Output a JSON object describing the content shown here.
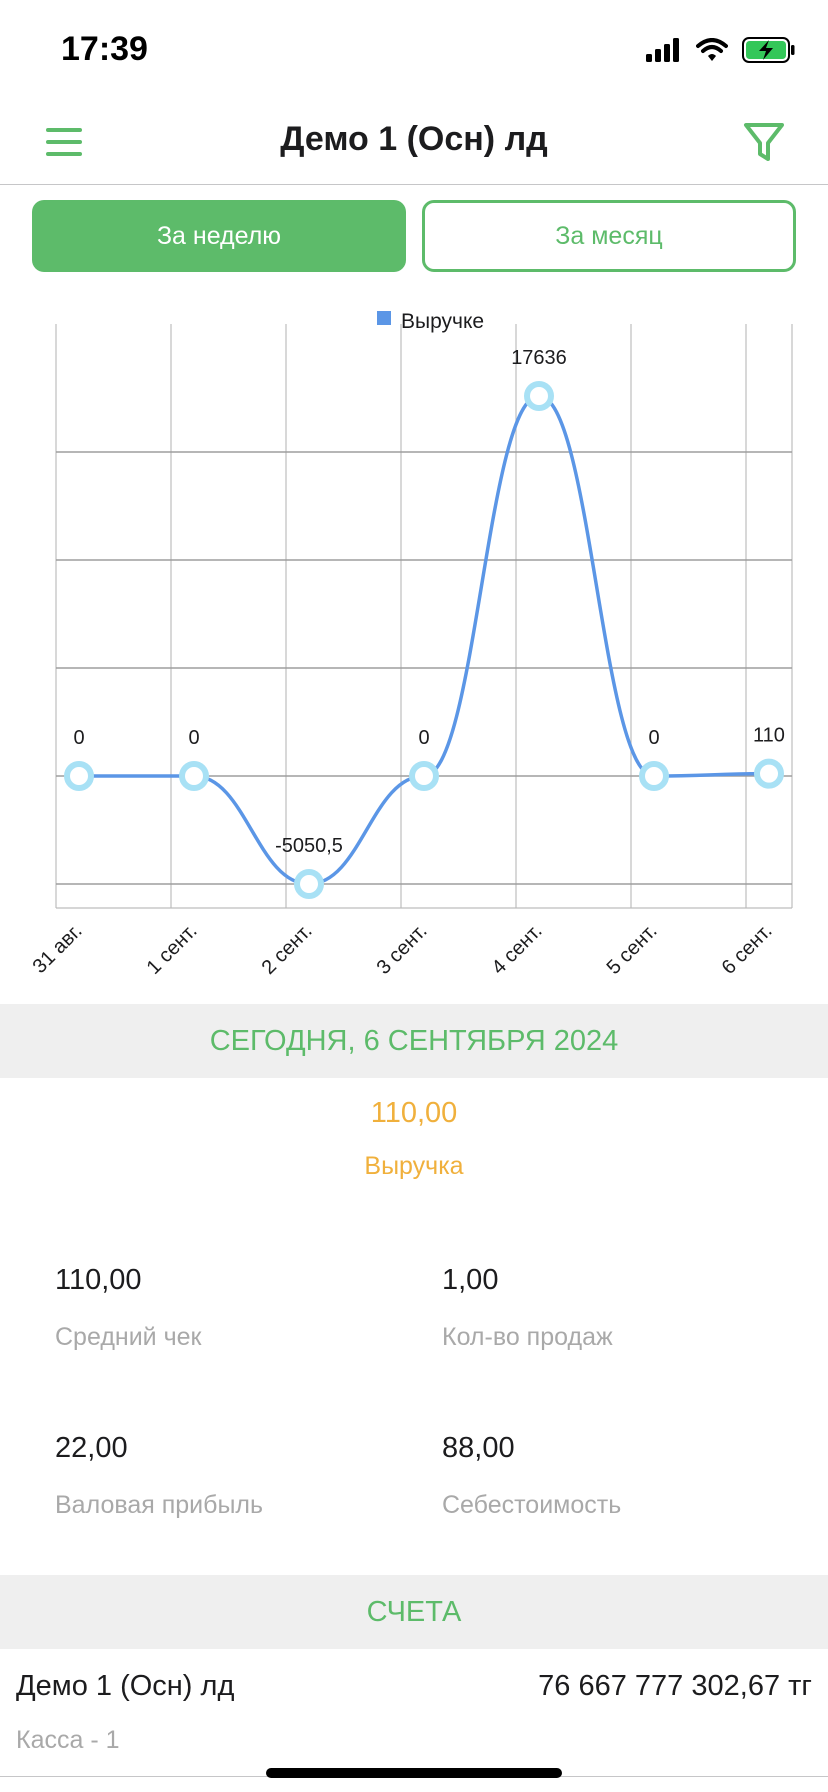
{
  "status_bar": {
    "time": "17:39"
  },
  "nav": {
    "title": "Демо 1 (Осн) лд"
  },
  "segment": {
    "week_label": "За неделю",
    "month_label": "За месяц",
    "selected": "week"
  },
  "chart_data": {
    "type": "line",
    "title": "",
    "legend": [
      "Выручке"
    ],
    "legend_position": "top",
    "categories": [
      "31 авг.",
      "1 сент.",
      "2 сент.",
      "3 сент.",
      "4 сент.",
      "5 сент.",
      "6 сент."
    ],
    "series": [
      {
        "name": "Выручке",
        "values": [
          0,
          0,
          -5050.5,
          0,
          17636,
          0,
          110
        ],
        "labels": [
          "0",
          "0",
          "-5050,5",
          "0",
          "17636",
          "0",
          "110"
        ]
      }
    ],
    "ylim": [
      -5050.5,
      17636
    ],
    "grid": true,
    "colors": {
      "line": "#5b96e6",
      "marker": "#a8e1f5",
      "legend_swatch": "#5b96e6"
    }
  },
  "summary": {
    "date_header": "СЕГОДНЯ,  6 СЕНТЯБРЯ 2024",
    "revenue_value": "110,00",
    "revenue_label": "Выручка",
    "stats": [
      {
        "value": "110,00",
        "label": "Средний чек"
      },
      {
        "value": "1,00",
        "label": "Кол-во продаж"
      },
      {
        "value": "22,00",
        "label": "Валовая прибыль"
      },
      {
        "value": "88,00",
        "label": "Себестоимость"
      }
    ]
  },
  "accounts": {
    "header": "СЧЕТА",
    "items": [
      {
        "name": "Демо 1 (Осн) лд",
        "amount": "76 667 777 302,67 тг",
        "sub": "Касса - 1"
      }
    ]
  },
  "colors": {
    "accent": "#5dbb6a",
    "highlight": "#f0b03c",
    "muted_text": "#a9a9a9",
    "section_bg": "#efefef"
  }
}
